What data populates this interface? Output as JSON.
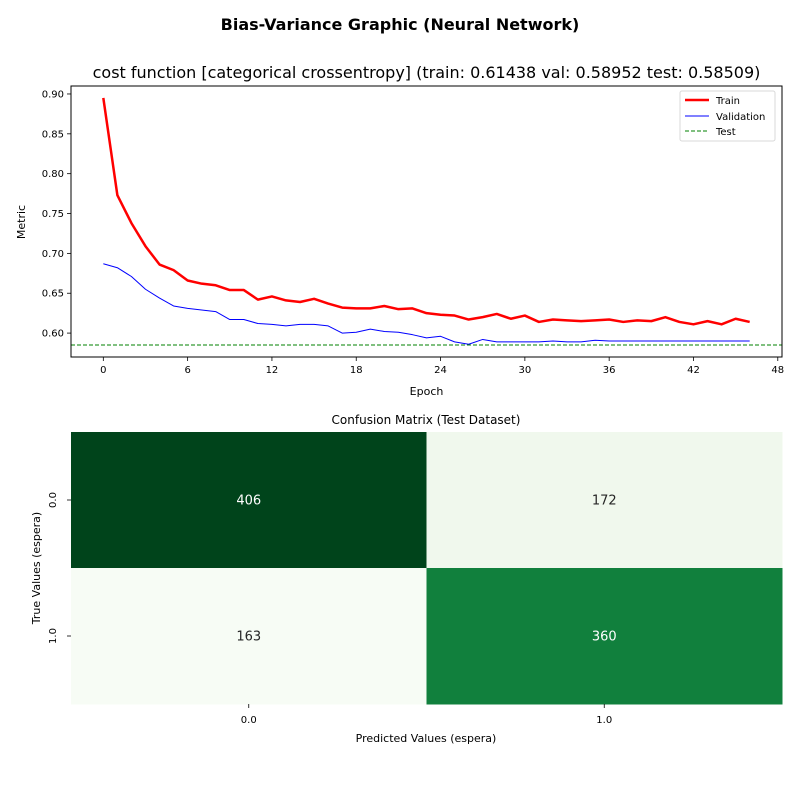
{
  "suptitle": "Bias-Variance Graphic (Neural Network)",
  "chart_data": [
    {
      "type": "line",
      "title": "cost function [categorical crossentropy] (train: 0.61438  val: 0.58952  test: 0.58509)",
      "xlabel": "Epoch",
      "ylabel": "Metric",
      "xlim": [
        -2.3,
        48.3
      ],
      "ylim": [
        0.57,
        0.91
      ],
      "xticks": [
        0,
        6,
        12,
        18,
        24,
        30,
        36,
        42,
        48
      ],
      "yticks": [
        0.6,
        0.65,
        0.7,
        0.75,
        0.8,
        0.85,
        0.9
      ],
      "legend_position": "top-right",
      "series": [
        {
          "name": "Train",
          "color": "#ff0000",
          "style": "solid",
          "x": [
            0,
            1,
            2,
            3,
            4,
            5,
            6,
            7,
            8,
            9,
            10,
            11,
            12,
            13,
            14,
            15,
            16,
            17,
            18,
            19,
            20,
            21,
            22,
            23,
            24,
            25,
            26,
            27,
            28,
            29,
            30,
            31,
            32,
            33,
            34,
            35,
            36,
            37,
            38,
            39,
            40,
            41,
            42,
            43,
            44,
            45,
            46
          ],
          "values": [
            0.895,
            0.773,
            0.738,
            0.709,
            0.686,
            0.679,
            0.666,
            0.662,
            0.66,
            0.654,
            0.654,
            0.642,
            0.646,
            0.641,
            0.639,
            0.643,
            0.637,
            0.632,
            0.631,
            0.631,
            0.634,
            0.63,
            0.631,
            0.625,
            0.623,
            0.622,
            0.617,
            0.62,
            0.624,
            0.618,
            0.622,
            0.614,
            0.617,
            0.616,
            0.615,
            0.616,
            0.617,
            0.614,
            0.616,
            0.615,
            0.62,
            0.614,
            0.611,
            0.615,
            0.611,
            0.618,
            0.614
          ]
        },
        {
          "name": "Validation",
          "color": "#0000ff",
          "style": "solid",
          "x": [
            0,
            1,
            2,
            3,
            4,
            5,
            6,
            7,
            8,
            9,
            10,
            11,
            12,
            13,
            14,
            15,
            16,
            17,
            18,
            19,
            20,
            21,
            22,
            23,
            24,
            25,
            26,
            27,
            28,
            29,
            30,
            31,
            32,
            33,
            34,
            35,
            36,
            37,
            38,
            39,
            40,
            41,
            42,
            43,
            44,
            45,
            46
          ],
          "values": [
            0.687,
            0.682,
            0.671,
            0.655,
            0.644,
            0.634,
            0.631,
            0.629,
            0.627,
            0.617,
            0.617,
            0.612,
            0.611,
            0.609,
            0.611,
            0.611,
            0.609,
            0.6,
            0.601,
            0.605,
            0.602,
            0.601,
            0.598,
            0.594,
            0.596,
            0.589,
            0.586,
            0.592,
            0.589,
            0.589,
            0.589,
            0.589,
            0.59,
            0.589,
            0.589,
            0.591,
            0.59,
            0.59,
            0.59,
            0.59,
            0.59,
            0.59,
            0.59,
            0.59,
            0.59,
            0.59,
            0.59
          ]
        },
        {
          "name": "Test",
          "color": "#008000",
          "style": "dashed",
          "constant": 0.58509
        }
      ]
    },
    {
      "type": "heatmap",
      "title": "Confusion Matrix (Test Dataset)",
      "xlabel": "Predicted Values (espera)",
      "ylabel": "True Values (espera)",
      "xticklabels": [
        "0.0",
        "1.0"
      ],
      "yticklabels": [
        "0.0",
        "1.0"
      ],
      "matrix": [
        [
          406,
          172
        ],
        [
          163,
          360
        ]
      ],
      "cell_colors": [
        [
          "#00441b",
          "#f0f8ed"
        ],
        [
          "#f7fcf5",
          "#11803d"
        ]
      ],
      "text_colors": [
        [
          "#ffffff",
          "#262626"
        ],
        [
          "#262626",
          "#ffffff"
        ]
      ],
      "colorbar": false
    }
  ]
}
